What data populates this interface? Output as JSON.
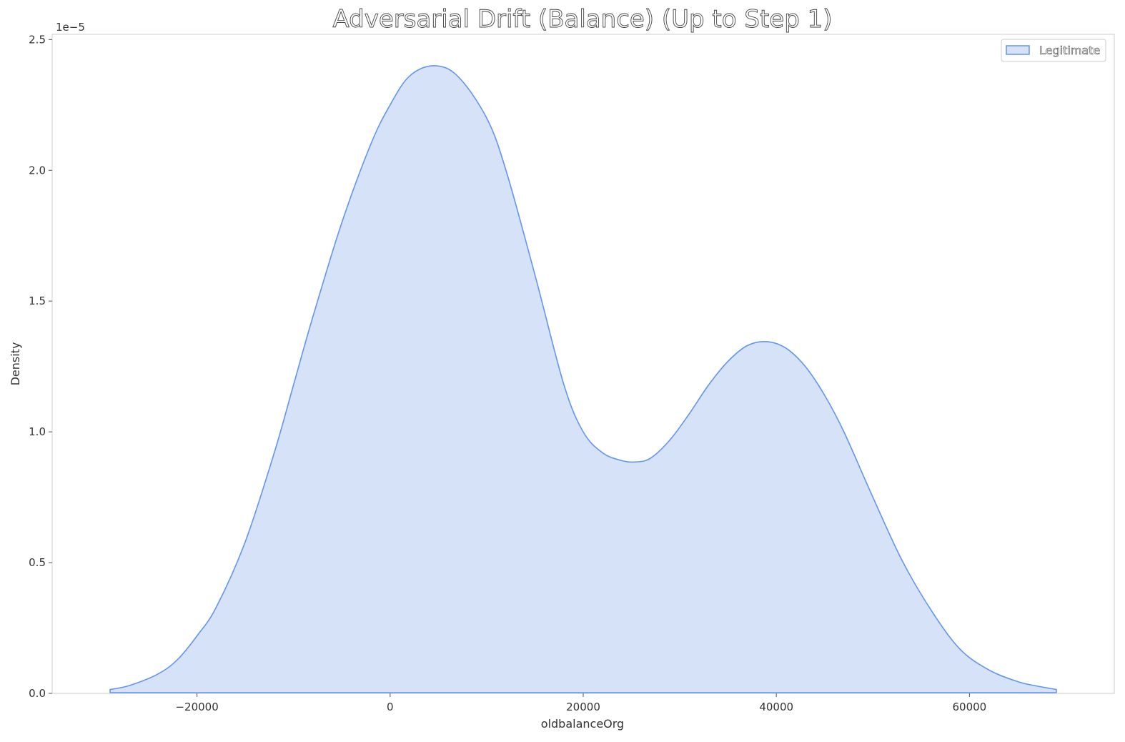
{
  "chart_data": {
    "type": "area",
    "title": "Adversarial Drift (Balance) (Up to Step 1)",
    "xlabel": "oldbalanceOrg",
    "ylabel": "Density",
    "y_offset_label": "1e−5",
    "xlim": [
      -35000,
      75000
    ],
    "ylim": [
      0,
      2.52
    ],
    "y_scale_factor": 1e-05,
    "x_ticks": [
      -20000,
      0,
      20000,
      40000,
      60000
    ],
    "x_tick_labels": [
      "−20000",
      "0",
      "20000",
      "40000",
      "60000"
    ],
    "y_ticks": [
      0.0,
      0.5,
      1.0,
      1.5,
      2.0,
      2.5
    ],
    "y_tick_labels": [
      "0.0",
      "0.5",
      "1.0",
      "1.5",
      "2.0",
      "2.5"
    ],
    "grid": false,
    "legend_position": "top-right",
    "series": [
      {
        "name": "Legitimate",
        "line_color": "#6495ed",
        "fill_color": "#d6e2f8",
        "x": [
          -29000,
          -27000,
          -24000,
          -22000,
          -20000,
          -18000,
          -15000,
          -12000,
          -10000,
          -8000,
          -5000,
          -2000,
          0,
          2000,
          4500,
          7000,
          10000,
          12000,
          15000,
          18000,
          20000,
          22000,
          24000,
          25500,
          27000,
          29000,
          31000,
          33000,
          35000,
          37000,
          39000,
          41000,
          43000,
          45000,
          47000,
          50000,
          53000,
          56000,
          59000,
          62000,
          65000,
          67000,
          69000
        ],
        "y": [
          0.015,
          0.03,
          0.075,
          0.13,
          0.22,
          0.33,
          0.58,
          0.92,
          1.18,
          1.44,
          1.8,
          2.1,
          2.25,
          2.36,
          2.4,
          2.36,
          2.2,
          2.0,
          1.6,
          1.18,
          1.0,
          0.92,
          0.89,
          0.885,
          0.9,
          0.97,
          1.07,
          1.18,
          1.27,
          1.33,
          1.345,
          1.32,
          1.25,
          1.14,
          1.0,
          0.75,
          0.51,
          0.32,
          0.17,
          0.09,
          0.045,
          0.028,
          0.015
        ]
      }
    ]
  }
}
